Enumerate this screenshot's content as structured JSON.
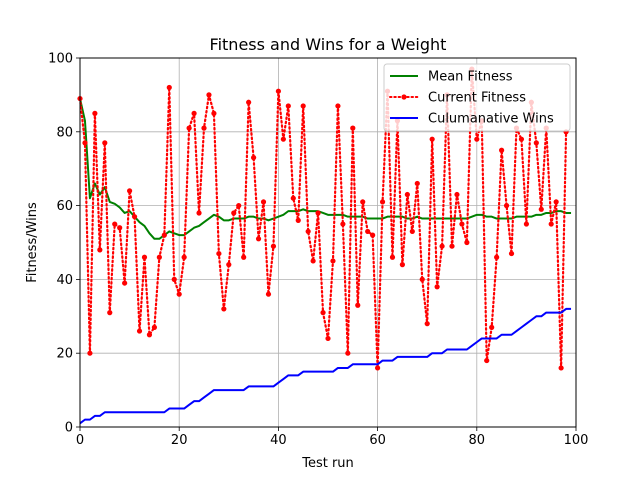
{
  "chart_data": {
    "type": "line",
    "title": "Fitness and Wins for a Weight",
    "xlabel": "Test run",
    "ylabel": "Fitness/Wins",
    "xlim": [
      0,
      100
    ],
    "ylim": [
      0,
      100
    ],
    "grid": true,
    "legend_position": "top-right",
    "x_ticks": [
      0,
      20,
      40,
      60,
      80,
      100
    ],
    "y_ticks": [
      0,
      20,
      40,
      60,
      80,
      100
    ],
    "x_tick_labels": [
      "0",
      "20",
      "40",
      "60",
      "80",
      "100"
    ],
    "y_tick_labels": [
      "0",
      "20",
      "40",
      "60",
      "80",
      "100"
    ],
    "series": [
      {
        "name": "Mean Fitness",
        "color": "#008000",
        "style": "solid",
        "marker": "none",
        "values": [
          89,
          83,
          62,
          66,
          63,
          65,
          61,
          60.5,
          59.5,
          58,
          58.5,
          57,
          55.5,
          54.5,
          52.5,
          51,
          51,
          52,
          53,
          52.5,
          52,
          52,
          53,
          54,
          54.5,
          55.5,
          56.5,
          57.5,
          57,
          56,
          56,
          56.5,
          56.5,
          56.5,
          57,
          57,
          56.5,
          56.5,
          56,
          56.5,
          57,
          57.5,
          58.5,
          58.5,
          58.5,
          59,
          58.5,
          58.5,
          58.5,
          58,
          57.5,
          57.5,
          57.5,
          57.5,
          57,
          57,
          57,
          57,
          56.5,
          56.5,
          56.5,
          56.5,
          57,
          57,
          57,
          57,
          56.5,
          56.5,
          57,
          56.5,
          56.5,
          56.5,
          56.5,
          56.5,
          56.5,
          56.5,
          56.5,
          56.5,
          56.5,
          57,
          57.5,
          57.5,
          57,
          57,
          56.5,
          56.5,
          56.5,
          56.5,
          57,
          57,
          57,
          57,
          57.5,
          57.5,
          58,
          58,
          58.5,
          58.5,
          58,
          58
        ]
      },
      {
        "name": "Current Fitness",
        "color": "#ff0000",
        "style": "dotted",
        "marker": "circle",
        "values": [
          89,
          77,
          20,
          85,
          48,
          77,
          31,
          55,
          54,
          39,
          64,
          57,
          26,
          46,
          25,
          27,
          46,
          52,
          92,
          40,
          36,
          46,
          81,
          85,
          58,
          81,
          90,
          85,
          47,
          32,
          44,
          58,
          60,
          46,
          88,
          73,
          51,
          61,
          36,
          49,
          91,
          78,
          87,
          62,
          56,
          87,
          53,
          45,
          58,
          31,
          24,
          45,
          87,
          55,
          20,
          81,
          33,
          61,
          53,
          52,
          16,
          61,
          91,
          46,
          83,
          44,
          63,
          53,
          66,
          40,
          28,
          78,
          38,
          49,
          90,
          49,
          63,
          55,
          50,
          97,
          78,
          83,
          18,
          27,
          46,
          75,
          60,
          47,
          81,
          78,
          55,
          88,
          77,
          59,
          81,
          55,
          61,
          16,
          80
        ]
      },
      {
        "name": "Culumanative Wins",
        "color": "#0000ff",
        "style": "solid",
        "marker": "none",
        "values": [
          1,
          2,
          2,
          3,
          3,
          4,
          4,
          4,
          4,
          4,
          4,
          4,
          4,
          4,
          4,
          4,
          4,
          4,
          5,
          5,
          5,
          5,
          6,
          7,
          7,
          8,
          9,
          10,
          10,
          10,
          10,
          10,
          10,
          10,
          11,
          11,
          11,
          11,
          11,
          11,
          12,
          13,
          14,
          14,
          14,
          15,
          15,
          15,
          15,
          15,
          15,
          15,
          16,
          16,
          16,
          17,
          17,
          17,
          17,
          17,
          17,
          18,
          18,
          18,
          19,
          19,
          19,
          19,
          19,
          19,
          19,
          20,
          20,
          20,
          21,
          21,
          21,
          21,
          21,
          22,
          23,
          24,
          24,
          24,
          24,
          25,
          25,
          25,
          26,
          27,
          28,
          29,
          30,
          30,
          31,
          31,
          31,
          31,
          32,
          32
        ]
      }
    ]
  }
}
